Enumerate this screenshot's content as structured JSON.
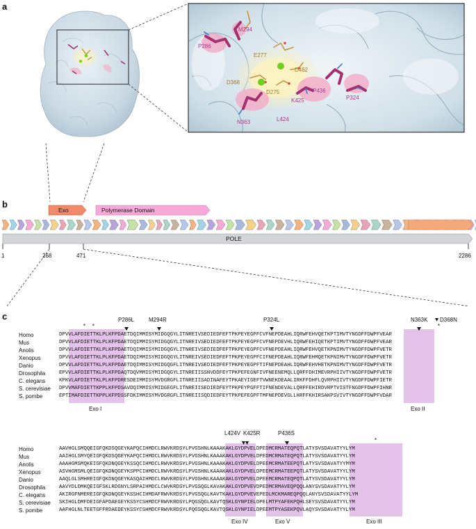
{
  "panels": {
    "a": "a",
    "b": "b",
    "c": "c"
  },
  "panel_a": {
    "zoom_labels": [
      {
        "text": "M294",
        "color": "#b0368a"
      },
      {
        "text": "P286",
        "color": "#b0368a"
      },
      {
        "text": "E277",
        "color": "#a0782a"
      },
      {
        "text": "D462",
        "color": "#a0782a"
      },
      {
        "text": "D368",
        "color": "#a0782a"
      },
      {
        "text": "D275",
        "color": "#a0782a"
      },
      {
        "text": "P436",
        "color": "#b0368a"
      },
      {
        "text": "K425",
        "color": "#b0368a"
      },
      {
        "text": "P324",
        "color": "#b0368a"
      },
      {
        "text": "N363",
        "color": "#b0368a"
      },
      {
        "text": "L424",
        "color": "#b0368a"
      }
    ]
  },
  "panel_b": {
    "exo_label": "Exo",
    "pol_label": "Polymerase Domain",
    "pole_label": "POLE",
    "ticks": [
      "1",
      "268",
      "471",
      "2286"
    ],
    "colors": {
      "exo": "#f08a6a",
      "pol": "#f9a9d8",
      "pole": "#d3d5d8",
      "orange": "#f6a97a"
    }
  },
  "panel_c": {
    "species": [
      "Homo",
      "Mus",
      "Anolis",
      "Xenopus",
      "Danio",
      "Drosophila",
      "C. elegans",
      "S. cerevisiae",
      "S. pombe"
    ],
    "block1": [
      "DPVVLAFDIETTKLPLKFPDAETDQIMMISYMIDGQGYLITNREIVSEDIEDFEFTPKPEYEGPFCVFNEPDEAHLIQRWFEHVQETKPTIMVTYNGDFFDWPFVEAR",
      "DPVVLAFDIETTKLPLKFPDAETDQIMMISYMIDGQGYLITNREIVSEDIEDFEFTPKPEYEGPFCVFNEPDEVHLIQRWFEHIQETKPTIMVTYNGDFFDWPFVEAR",
      "DPVVLAFDIETTKLPLKFPDAETDQIMMISYMIDGQGYLITNREIVSEDIEDFEFTPKPEYEGPFCVFNEPDEAHLIQRWFEHVQETKPNIMVTYNGDFFDWPFVETR",
      "DPVVLAFDIETTKLPLKFPDAETDQIMMISYMIDGQGYLITNREIVSEDIEDFEFTPKPEYEGPFCIFNEPDEAHLIQRWFEHMQETKPNIMVTYNGDFFDWPFVETR",
      "DPVVLAFDIETTKLPLKFPDAETDQIMMISYMIDGQGFLITNREIVSEDIEDFEFTPKPEYEGPFTIFNEPDEAHLIQRWFEHVHETKPNIMVTYNGDFFDWPFVETR",
      "EPVVLAFDIETTKLPLKFPDAQTDQVMMISYMIDGQGYLITNREIISSNVDDFEYTPKPEFEGNFIVFNEENEMQLLQRFFDHIMEVRPHIIVTYNGDFFDWPFVETR",
      "KPKVLAFDIETTKLPLKFPDRESDEIMMISYMVDGRGFLITNREIISADINAFEYTPKAEYIGEFTVWNEKDEAALIRKFFDHFLQVRPHIIVTYNGDFFDWPFIETR",
      "DPVVMAFDIETTKPPLKFPDSAVDQIMMISYMIDGEGFLITNREIISEDIEDFEYTPKPEYPGFFTIFNENDEVALLQRFFEHIRDVRPTVISTFNGDFFDWPFIHNR",
      "EPTIMAFDIETTKPPLKFPDSSFDKIMMISYMVDGRGFLITNREIISQDIEDFEYTPKPEFEGPFTMFNEPDEVGLLHRFFKHIRSAKPSVIVTYNGDFFDWPFVDAR"
    ],
    "block2": [
      "AAVHGLSMQQEIGFQKDSQGEYKAPQCIHMDCLRWVKRDSYLPVGSHNLKAAAKAKLGYDPVELDPEDMCRMATEQPQTLATYSVSDAVATYYLYM",
      "AAIHGLSMYQEIGFQKDSQGEYKAPQCIHMDCLRWVKRDSYLPVGSHNLKAAAKAKLGYDPVELDPEDMCRMATEQPQTLATYSVSDAVATYYLYM",
      "AAAHGMSMQKEIGFQKDNQGEYKSSQCIHMDCLRWVKRDSYLPVGSHNLKAAAKAKLGYDPVELDPEEMCRMATEEPQTLATYSVSDAVATYYMYM",
      "ASVHGMSMLQEIGFQKDNQGEYKSPPCIHMDCLRWVKRDSYLPVGSHNLKAAAKAKLGYDPVELDPEEMCRMATEEPQTLATYSVSDAVATYYLYM",
      "AAQLGLSMHREIGFQKDNQGEYKASQAIHMDCLRWVKRDSYLPVGSHNLKAAAKAKLGYDPVELDPEEMCRMATEQPQTLATYSVSDAVATYYLYM",
      "AAVYDLDMKQEIGFSKLRDGNYLSRPAIHMDCLCWVKRDSYLPVGSQGLKAVAKAKLGYDPVEVDPEDMCRMAVEQPQQLANYSVSDAVATYYLYM",
      "AKIRGFNMEREIGFQKDNQGEYKSSHCIHMDAFRWVKRDSYLPVGSQGLKAVTKAKLGYDPVEVEPEDLMCKMAREQPQQLANYSVSDAVATYYLYM",
      "SKIHGLDMFDEIGFAPDAEGEYKSSYCSHMDCFRWVKRDSYLPQGSQGLKAVTQSKLGYNPIELDPELMTPYAFEKPQHLSEYSVSDAVATYYLYM",
      "AAFHGLNLTEETGFFRDAEDEYKSSYCSHMDCFRWVKRDSYLPQGSQGLKAVTQSKLGYNPIELDPEEMTPYASEKPQVLAQYSVSDAVATYYLYM"
    ],
    "mutations_1": [
      "P286L",
      "M294R",
      "P324L",
      "N363K",
      "D368N"
    ],
    "mutations_2": [
      "L424V",
      "K425R",
      "P436S"
    ],
    "stars": [
      "*",
      "*",
      "*",
      "*"
    ],
    "motifs_1": [
      "Exo I",
      "Exo II"
    ],
    "motifs_2": [
      "Exo IV",
      "Exo V",
      "Exo III"
    ],
    "highlight_color": "#e4c3ea"
  }
}
